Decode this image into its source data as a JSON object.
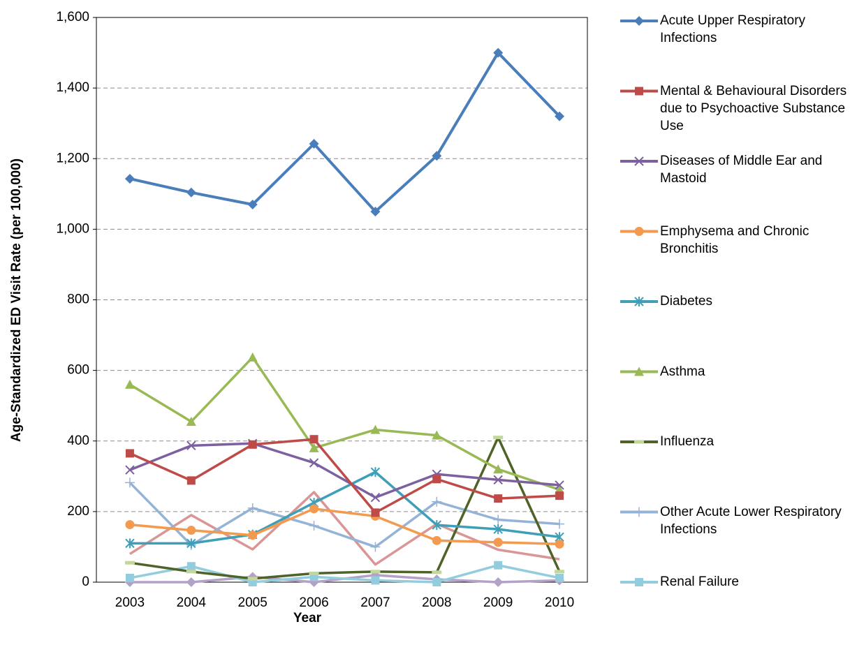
{
  "chart_data": {
    "type": "line",
    "x_label": "Year",
    "y_label": "Age-Standardized ED Visit Rate (per 100,000)",
    "categories": [
      "2003",
      "2004",
      "2005",
      "2006",
      "2007",
      "2008",
      "2009",
      "2010"
    ],
    "ylim": [
      0,
      1600
    ],
    "yticks": [
      0,
      200,
      400,
      600,
      800,
      {
        "value": 1000,
        "label": "1,000"
      },
      {
        "value": 1200,
        "label": "1,200"
      },
      {
        "value": 1400,
        "label": "1,400"
      },
      {
        "value": 1600,
        "label": "1,600"
      }
    ],
    "grid": true,
    "legend": "right",
    "series": [
      {
        "name": "Acute Upper Respiratory Infections",
        "color": "#4a7ebb",
        "marker": "diamond",
        "values": [
          1143,
          1104,
          1070,
          1242,
          1050,
          1208,
          1500,
          1320
        ]
      },
      {
        "name": "Mental & Behavioural Disorders due to Psychoactive Substance Use",
        "color": "#be4b48",
        "marker": "square",
        "values": [
          365,
          288,
          390,
          405,
          197,
          292,
          237,
          245
        ]
      },
      {
        "name": "Diseases of Middle Ear and Mastoid",
        "color": "#7d60a0",
        "marker": "x",
        "values": [
          318,
          387,
          393,
          338,
          240,
          306,
          290,
          275
        ]
      },
      {
        "name": "Emphysema and Chronic Bronchitis",
        "color": "#f39a4f",
        "marker": "circle",
        "values": [
          163,
          147,
          133,
          208,
          187,
          118,
          113,
          108
        ]
      },
      {
        "name": "Diabetes",
        "color": "#3f9fb8",
        "marker": "asterisk",
        "values": [
          110,
          110,
          135,
          225,
          312,
          162,
          150,
          128
        ]
      },
      {
        "name": "Asthma",
        "color": "#98b954",
        "marker": "triangle",
        "values": [
          560,
          455,
          637,
          380,
          432,
          416,
          320,
          262
        ]
      },
      {
        "name": "Influenza",
        "color": "#4f6228",
        "marker": "dash",
        "values": [
          55,
          30,
          10,
          25,
          30,
          28,
          410,
          30
        ]
      },
      {
        "name": "Other Acute Lower Respiratory Infections",
        "color": "#95b3d7",
        "marker": "plus",
        "values": [
          282,
          105,
          210,
          160,
          100,
          228,
          177,
          165
        ]
      },
      {
        "name": "Renal Failure",
        "color": "#93cddd",
        "marker": "square",
        "values": [
          12,
          45,
          0,
          15,
          5,
          0,
          48,
          12
        ]
      },
      {
        "color": "#d99694",
        "marker": "none",
        "values": [
          80,
          190,
          93,
          255,
          50,
          165,
          92,
          65
        ]
      },
      {
        "color": "#b3a2c7",
        "marker": "diamond",
        "values": [
          0,
          0,
          15,
          0,
          20,
          8,
          0,
          5
        ]
      }
    ]
  }
}
